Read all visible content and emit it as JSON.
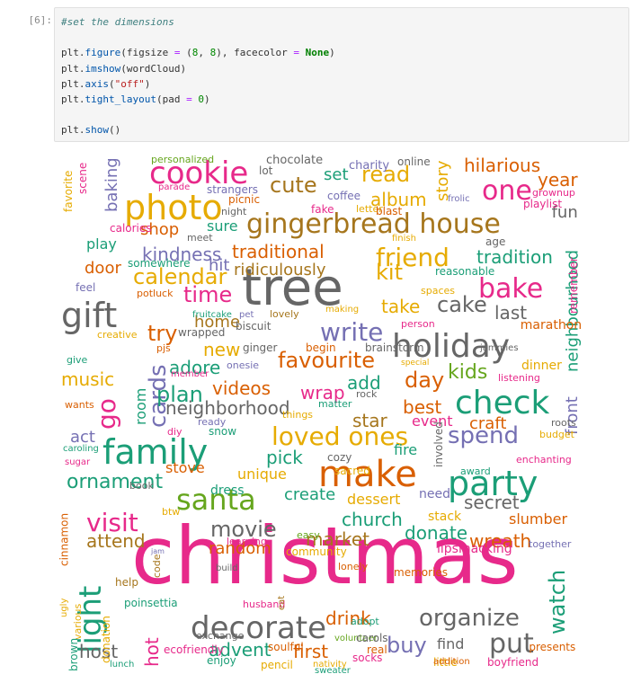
{
  "cell": {
    "prompt": "[6]:",
    "lines": [
      [
        {
          "t": "#set the dimensions",
          "c": "c-comment"
        }
      ],
      [],
      [
        {
          "t": "plt."
        },
        {
          "t": "figure",
          "c": "c-fn"
        },
        {
          "t": "(figsize "
        },
        {
          "t": "=",
          "c": "c-op"
        },
        {
          "t": " ("
        },
        {
          "t": "8",
          "c": "c-num"
        },
        {
          "t": ", "
        },
        {
          "t": "8",
          "c": "c-num"
        },
        {
          "t": "), facecolor "
        },
        {
          "t": "=",
          "c": "c-op"
        },
        {
          "t": " "
        },
        {
          "t": "None",
          "c": "c-kw"
        },
        {
          "t": ")"
        }
      ],
      [
        {
          "t": "plt."
        },
        {
          "t": "imshow",
          "c": "c-fn"
        },
        {
          "t": "(wordCloud)"
        }
      ],
      [
        {
          "t": "plt."
        },
        {
          "t": "axis",
          "c": "c-fn"
        },
        {
          "t": "("
        },
        {
          "t": "\"off\"",
          "c": "c-str"
        },
        {
          "t": ")"
        }
      ],
      [
        {
          "t": "plt."
        },
        {
          "t": "tight_layout",
          "c": "c-fn"
        },
        {
          "t": "(pad "
        },
        {
          "t": "=",
          "c": "c-op"
        },
        {
          "t": " "
        },
        {
          "t": "0",
          "c": "c-num"
        },
        {
          "t": ")"
        }
      ],
      [],
      [
        {
          "t": "plt."
        },
        {
          "t": "show",
          "c": "c-fn"
        },
        {
          "t": "()"
        }
      ]
    ]
  },
  "colors": {
    "pink": "#e7298a",
    "orange": "#d95f02",
    "teal": "#1b9e77",
    "purple": "#7570b3",
    "green": "#66a61e",
    "gold": "#e6ab02",
    "brown": "#a6761d",
    "gray": "#666666"
  },
  "wordcloud": [
    {
      "w": "christmas",
      "c": "pink"
    },
    {
      "w": "tree",
      "c": "gray"
    },
    {
      "w": "gingerbread house",
      "c": "brown"
    },
    {
      "w": "make",
      "c": "orange"
    },
    {
      "w": "family",
      "c": "teal"
    },
    {
      "w": "party",
      "c": "teal"
    },
    {
      "w": "gift",
      "c": "gray"
    },
    {
      "w": "holiday",
      "c": "gray"
    },
    {
      "w": "decorate",
      "c": "gray"
    },
    {
      "w": "cookie",
      "c": "pink"
    },
    {
      "w": "photo",
      "c": "gold"
    },
    {
      "w": "check",
      "c": "teal"
    },
    {
      "w": "santa",
      "c": "green"
    },
    {
      "w": "loved ones",
      "c": "gold"
    },
    {
      "w": "friend",
      "c": "gold"
    },
    {
      "w": "bake",
      "c": "pink"
    },
    {
      "w": "write",
      "c": "purple"
    },
    {
      "w": "one",
      "c": "pink"
    },
    {
      "w": "light",
      "c": "teal"
    },
    {
      "w": "visit",
      "c": "pink"
    },
    {
      "w": "read",
      "c": "gold"
    },
    {
      "w": "cute",
      "c": "brown"
    },
    {
      "w": "spend",
      "c": "purple"
    },
    {
      "w": "cake",
      "c": "gray"
    },
    {
      "w": "organize",
      "c": "gray"
    },
    {
      "w": "favourite",
      "c": "orange"
    },
    {
      "w": "kit",
      "c": "gold"
    },
    {
      "w": "calendar",
      "c": "gold"
    },
    {
      "w": "buy",
      "c": "purple"
    },
    {
      "w": "put",
      "c": "gray"
    },
    {
      "w": "movie",
      "c": "gray"
    },
    {
      "w": "cards",
      "c": "purple"
    },
    {
      "w": "time",
      "c": "pink"
    },
    {
      "w": "hilarious",
      "c": "orange"
    },
    {
      "w": "ornament",
      "c": "teal"
    },
    {
      "w": "year",
      "c": "orange"
    },
    {
      "w": "tradition",
      "c": "teal"
    },
    {
      "w": "ridiculously",
      "c": "brown"
    },
    {
      "w": "traditional",
      "c": "orange"
    },
    {
      "w": "kindness",
      "c": "purple"
    },
    {
      "w": "last",
      "c": "gray"
    },
    {
      "w": "album",
      "c": "gold"
    },
    {
      "w": "wreath",
      "c": "orange"
    },
    {
      "w": "church",
      "c": "teal"
    },
    {
      "w": "watch",
      "c": "teal"
    },
    {
      "w": "go",
      "c": "pink"
    },
    {
      "w": "try",
      "c": "orange"
    },
    {
      "w": "plan",
      "c": "teal"
    },
    {
      "w": "day",
      "c": "orange"
    },
    {
      "w": "kids",
      "c": "green"
    },
    {
      "w": "home",
      "c": "brown"
    },
    {
      "w": "adore",
      "c": "teal"
    },
    {
      "w": "videos",
      "c": "orange"
    },
    {
      "w": "new",
      "c": "gold"
    },
    {
      "w": "take",
      "c": "gold"
    },
    {
      "w": "neighborhood",
      "c": "gray"
    },
    {
      "w": "neighbourhood",
      "c": "teal"
    },
    {
      "w": "wrap",
      "c": "pink"
    },
    {
      "w": "add",
      "c": "teal"
    },
    {
      "w": "best",
      "c": "orange"
    },
    {
      "w": "star",
      "c": "brown"
    },
    {
      "w": "pick",
      "c": "teal"
    },
    {
      "w": "market",
      "c": "brown"
    },
    {
      "w": "donate",
      "c": "teal"
    },
    {
      "w": "advent",
      "c": "teal"
    },
    {
      "w": "first",
      "c": "orange"
    },
    {
      "w": "drink",
      "c": "orange"
    },
    {
      "w": "host",
      "c": "gray"
    },
    {
      "w": "attend",
      "c": "brown"
    },
    {
      "w": "random",
      "c": "orange"
    },
    {
      "w": "secret",
      "c": "gray"
    },
    {
      "w": "create",
      "c": "teal"
    },
    {
      "w": "music",
      "c": "gold"
    },
    {
      "w": "story",
      "c": "gold"
    },
    {
      "w": "set",
      "c": "teal"
    },
    {
      "w": "shop",
      "c": "orange"
    },
    {
      "w": "door",
      "c": "orange"
    },
    {
      "w": "hit",
      "c": "purple"
    },
    {
      "w": "fun",
      "c": "gray"
    },
    {
      "w": "baking",
      "c": "purple"
    },
    {
      "w": "play",
      "c": "teal"
    },
    {
      "w": "stove",
      "c": "orange"
    },
    {
      "w": "act",
      "c": "purple"
    },
    {
      "w": "hot",
      "c": "pink"
    },
    {
      "w": "front",
      "c": "purple"
    },
    {
      "w": "event",
      "c": "pink"
    },
    {
      "w": "craft",
      "c": "orange"
    },
    {
      "w": "slumber",
      "c": "orange"
    },
    {
      "w": "unique",
      "c": "gold"
    },
    {
      "w": "dessert",
      "c": "gold"
    },
    {
      "w": "marathon",
      "c": "orange"
    },
    {
      "w": "lipsmacking",
      "c": "pink"
    },
    {
      "w": "stack",
      "c": "gold"
    },
    {
      "w": "dress",
      "c": "teal"
    },
    {
      "w": "sure",
      "c": "teal"
    },
    {
      "w": "dinner",
      "c": "gold"
    },
    {
      "w": "fire",
      "c": "teal"
    },
    {
      "w": "find",
      "c": "gray"
    },
    {
      "w": "room",
      "c": "teal"
    },
    {
      "w": "need",
      "c": "purple"
    },
    {
      "w": "age",
      "c": "gray"
    },
    {
      "w": "personalized",
      "c": "green"
    },
    {
      "w": "chocolate",
      "c": "gray"
    },
    {
      "w": "charity",
      "c": "purple"
    },
    {
      "w": "online",
      "c": "gray"
    },
    {
      "w": "lot",
      "c": "gray"
    },
    {
      "w": "favorite",
      "c": "gold"
    },
    {
      "w": "scene",
      "c": "pink"
    },
    {
      "w": "parade",
      "c": "pink"
    },
    {
      "w": "strangers",
      "c": "purple"
    },
    {
      "w": "picnic",
      "c": "orange"
    },
    {
      "w": "night",
      "c": "gray"
    },
    {
      "w": "coffee",
      "c": "purple"
    },
    {
      "w": "fake",
      "c": "pink"
    },
    {
      "w": "letter",
      "c": "gold"
    },
    {
      "w": "blast",
      "c": "orange"
    },
    {
      "w": "frolic",
      "c": "purple"
    },
    {
      "w": "grownup",
      "c": "pink"
    },
    {
      "w": "playlist",
      "c": "pink"
    },
    {
      "w": "calories",
      "c": "pink"
    },
    {
      "w": "meet",
      "c": "gray"
    },
    {
      "w": "finish",
      "c": "gold"
    },
    {
      "w": "somewhere",
      "c": "teal"
    },
    {
      "w": "reasonable",
      "c": "teal"
    },
    {
      "w": "feel",
      "c": "purple"
    },
    {
      "w": "potluck",
      "c": "orange"
    },
    {
      "w": "spaces",
      "c": "gold"
    },
    {
      "w": "remember",
      "c": "pink"
    },
    {
      "w": "fruitcake",
      "c": "teal"
    },
    {
      "w": "pet",
      "c": "purple"
    },
    {
      "w": "lovely",
      "c": "brown"
    },
    {
      "w": "making",
      "c": "gold"
    },
    {
      "w": "person",
      "c": "pink"
    },
    {
      "w": "creative",
      "c": "gold"
    },
    {
      "w": "wrapped",
      "c": "gray"
    },
    {
      "w": "biscuit",
      "c": "gray"
    },
    {
      "w": "ginger",
      "c": "gray"
    },
    {
      "w": "begin",
      "c": "orange"
    },
    {
      "w": "brainstorm",
      "c": "gray"
    },
    {
      "w": "pjs",
      "c": "orange"
    },
    {
      "w": "give",
      "c": "teal"
    },
    {
      "w": "member",
      "c": "pink"
    },
    {
      "w": "onesie",
      "c": "purple"
    },
    {
      "w": "special",
      "c": "gold"
    },
    {
      "w": "jammies",
      "c": "gray"
    },
    {
      "w": "listening",
      "c": "pink"
    },
    {
      "w": "wants",
      "c": "orange"
    },
    {
      "w": "rock",
      "c": "gray"
    },
    {
      "w": "matter",
      "c": "teal"
    },
    {
      "w": "ready",
      "c": "purple"
    },
    {
      "w": "things",
      "c": "gold"
    },
    {
      "w": "roots",
      "c": "gray"
    },
    {
      "w": "diy",
      "c": "pink"
    },
    {
      "w": "snow",
      "c": "teal"
    },
    {
      "w": "budget",
      "c": "gold"
    },
    {
      "w": "caroling",
      "c": "teal"
    },
    {
      "w": "cozy",
      "c": "gray"
    },
    {
      "w": "sugar",
      "c": "pink"
    },
    {
      "w": "sacred",
      "c": "gold"
    },
    {
      "w": "involved",
      "c": "gray"
    },
    {
      "w": "award",
      "c": "teal"
    },
    {
      "w": "enchanting",
      "c": "pink"
    },
    {
      "w": "book",
      "c": "gray"
    },
    {
      "w": "btw",
      "c": "gold"
    },
    {
      "w": "easy",
      "c": "green"
    },
    {
      "w": "learning",
      "c": "pink"
    },
    {
      "w": "jam",
      "c": "purple"
    },
    {
      "w": "code",
      "c": "brown"
    },
    {
      "w": "community",
      "c": "gold"
    },
    {
      "w": "cinnamon",
      "c": "orange"
    },
    {
      "w": "build",
      "c": "gray"
    },
    {
      "w": "lonely",
      "c": "orange"
    },
    {
      "w": "memories",
      "c": "orange"
    },
    {
      "w": "together",
      "c": "purple"
    },
    {
      "w": "ugly",
      "c": "gold"
    },
    {
      "w": "help",
      "c": "brown"
    },
    {
      "w": "husband",
      "c": "pink"
    },
    {
      "w": "eat",
      "c": "brown"
    },
    {
      "w": "poinsettia",
      "c": "teal"
    },
    {
      "w": "various",
      "c": "gold"
    },
    {
      "w": "exchange",
      "c": "gray"
    },
    {
      "w": "soulful",
      "c": "orange"
    },
    {
      "w": "volunteer",
      "c": "green"
    },
    {
      "w": "adopt",
      "c": "teal"
    },
    {
      "w": "brown",
      "c": "teal"
    },
    {
      "w": "donation",
      "c": "gold"
    },
    {
      "w": "ecofriendly",
      "c": "pink"
    },
    {
      "w": "enjoy",
      "c": "teal"
    },
    {
      "w": "pencil",
      "c": "gold"
    },
    {
      "w": "sweater",
      "c": "teal"
    },
    {
      "w": "real",
      "c": "orange"
    },
    {
      "w": "carols",
      "c": "gray"
    },
    {
      "w": "socks",
      "c": "pink"
    },
    {
      "w": "nativity",
      "c": "gold"
    },
    {
      "w": "little",
      "c": "gold"
    },
    {
      "w": "presents",
      "c": "orange"
    },
    {
      "w": "lunch",
      "c": "teal"
    },
    {
      "w": "addition",
      "c": "orange"
    },
    {
      "w": "boyfriend",
      "c": "pink"
    },
    {
      "w": "gingerbread",
      "c": "orange"
    }
  ]
}
